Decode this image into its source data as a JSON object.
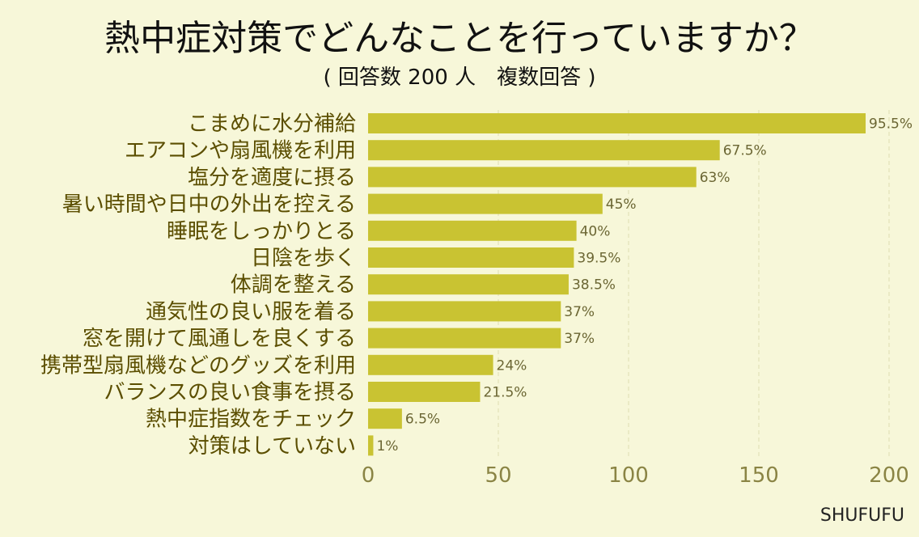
{
  "header": {
    "title": "熱中症対策でどんなことを行っていますか？",
    "subtitle": "( 回答数 200 人　複数回答 )"
  },
  "brand": "SHUFUFU",
  "colors": {
    "background": "#f7f7d9",
    "bar": "#c9c332",
    "grid": "#e3e2b8"
  },
  "chart_data": {
    "type": "bar",
    "orientation": "horizontal",
    "title": "熱中症対策でどんなことを行っていますか？",
    "subtitle": "( 回答数 200 人　複数回答 )",
    "categories": [
      "こまめに水分補給",
      "エアコンや扇風機を利用",
      "塩分を適度に摂る",
      "暑い時間や日中の外出を控える",
      "睡眠をしっかりとる",
      "日陰を歩く",
      "体調を整える",
      "通気性の良い服を着る",
      "窓を開けて風通しを良くする",
      "携帯型扇風機などのグッズを利用",
      "バランスの良い食事を摂る",
      "熱中症指数をチェック",
      "対策はしていない"
    ],
    "values": [
      191,
      135,
      126,
      90,
      80,
      79,
      77,
      74,
      74,
      48,
      43,
      13,
      2
    ],
    "value_labels": [
      "95.5%",
      "67.5%",
      "63%",
      "45%",
      "40%",
      "39.5%",
      "38.5%",
      "37%",
      "37%",
      "24%",
      "21.5%",
      "6.5%",
      "1%"
    ],
    "xlim": [
      0,
      200
    ],
    "xticks": [
      0,
      50,
      100,
      150,
      200
    ],
    "xtick_labels": [
      "0",
      "50",
      "100",
      "150",
      "200"
    ],
    "grid": true
  }
}
